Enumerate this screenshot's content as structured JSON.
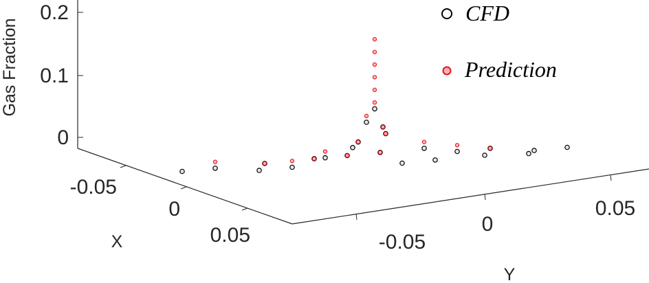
{
  "chart_data": {
    "type": "scatter",
    "projection": "3d",
    "zlabel": "Gas Fraction",
    "xlabel": "X",
    "ylabel": "Y",
    "z_ticks": [
      "0",
      "0.1",
      "0.2"
    ],
    "x_ticks": [
      "-0.05",
      "0",
      "0.05"
    ],
    "y_ticks": [
      "-0.05",
      "0",
      "0.05"
    ],
    "xlim": [
      -0.08,
      0.08
    ],
    "ylim": [
      -0.08,
      0.08
    ],
    "zlim": [
      0,
      0.2
    ],
    "grid": false,
    "legend": "top-right",
    "series": [
      {
        "name": "CFD",
        "marker": "circle-open",
        "color": "#000000",
        "values": [
          [
            -0.07,
            -0.05,
            0.0
          ],
          [
            -0.05,
            -0.05,
            0.0
          ],
          [
            -0.03,
            -0.05,
            0.0
          ],
          [
            0.0,
            -0.05,
            0.0
          ],
          [
            0.03,
            -0.05,
            0.0
          ],
          [
            0.05,
            -0.05,
            0.0
          ],
          [
            -0.07,
            0.0,
            0.0
          ],
          [
            -0.05,
            0.0,
            0.0
          ],
          [
            -0.03,
            0.0,
            0.01
          ],
          [
            0.03,
            0.0,
            0.01
          ],
          [
            0.05,
            0.0,
            0.0
          ],
          [
            0.07,
            0.0,
            0.0
          ],
          [
            -0.05,
            0.05,
            0.0
          ],
          [
            -0.03,
            0.05,
            0.0
          ],
          [
            0.0,
            0.05,
            0.0
          ],
          [
            0.03,
            0.05,
            0.0
          ],
          [
            0.05,
            0.05,
            0.0
          ],
          [
            0.0,
            0.07,
            0.0
          ],
          [
            0.0,
            0.0,
            0.08
          ],
          [
            0.005,
            0.0,
            0.06
          ],
          [
            -0.005,
            0.0,
            0.05
          ],
          [
            0.0,
            0.005,
            0.04
          ],
          [
            0.01,
            0.0,
            0.03
          ],
          [
            0.0,
            -0.01,
            0.02
          ]
        ]
      },
      {
        "name": "Prediction",
        "marker": "circle-open",
        "color": "#e8141c",
        "values": [
          [
            -0.07,
            -0.05,
            0.0
          ],
          [
            -0.05,
            -0.05,
            0.0
          ],
          [
            -0.03,
            -0.05,
            0.0
          ],
          [
            0.0,
            -0.05,
            0.0
          ],
          [
            0.03,
            -0.05,
            0.01
          ],
          [
            -0.07,
            0.0,
            0.0
          ],
          [
            -0.05,
            0.0,
            0.01
          ],
          [
            -0.03,
            0.0,
            0.02
          ],
          [
            0.03,
            0.0,
            0.02
          ],
          [
            0.05,
            0.0,
            0.01
          ],
          [
            0.0,
            0.0,
            0.19
          ],
          [
            0.0,
            0.0,
            0.17
          ],
          [
            0.0,
            0.0,
            0.15
          ],
          [
            0.0,
            0.0,
            0.13
          ],
          [
            0.0,
            0.0,
            0.11
          ],
          [
            0.0,
            0.0,
            0.09
          ],
          [
            0.005,
            0.0,
            0.07
          ],
          [
            -0.005,
            0.0,
            0.05
          ],
          [
            0.0,
            0.005,
            0.04
          ],
          [
            0.01,
            0.0,
            0.03
          ]
        ]
      }
    ]
  }
}
